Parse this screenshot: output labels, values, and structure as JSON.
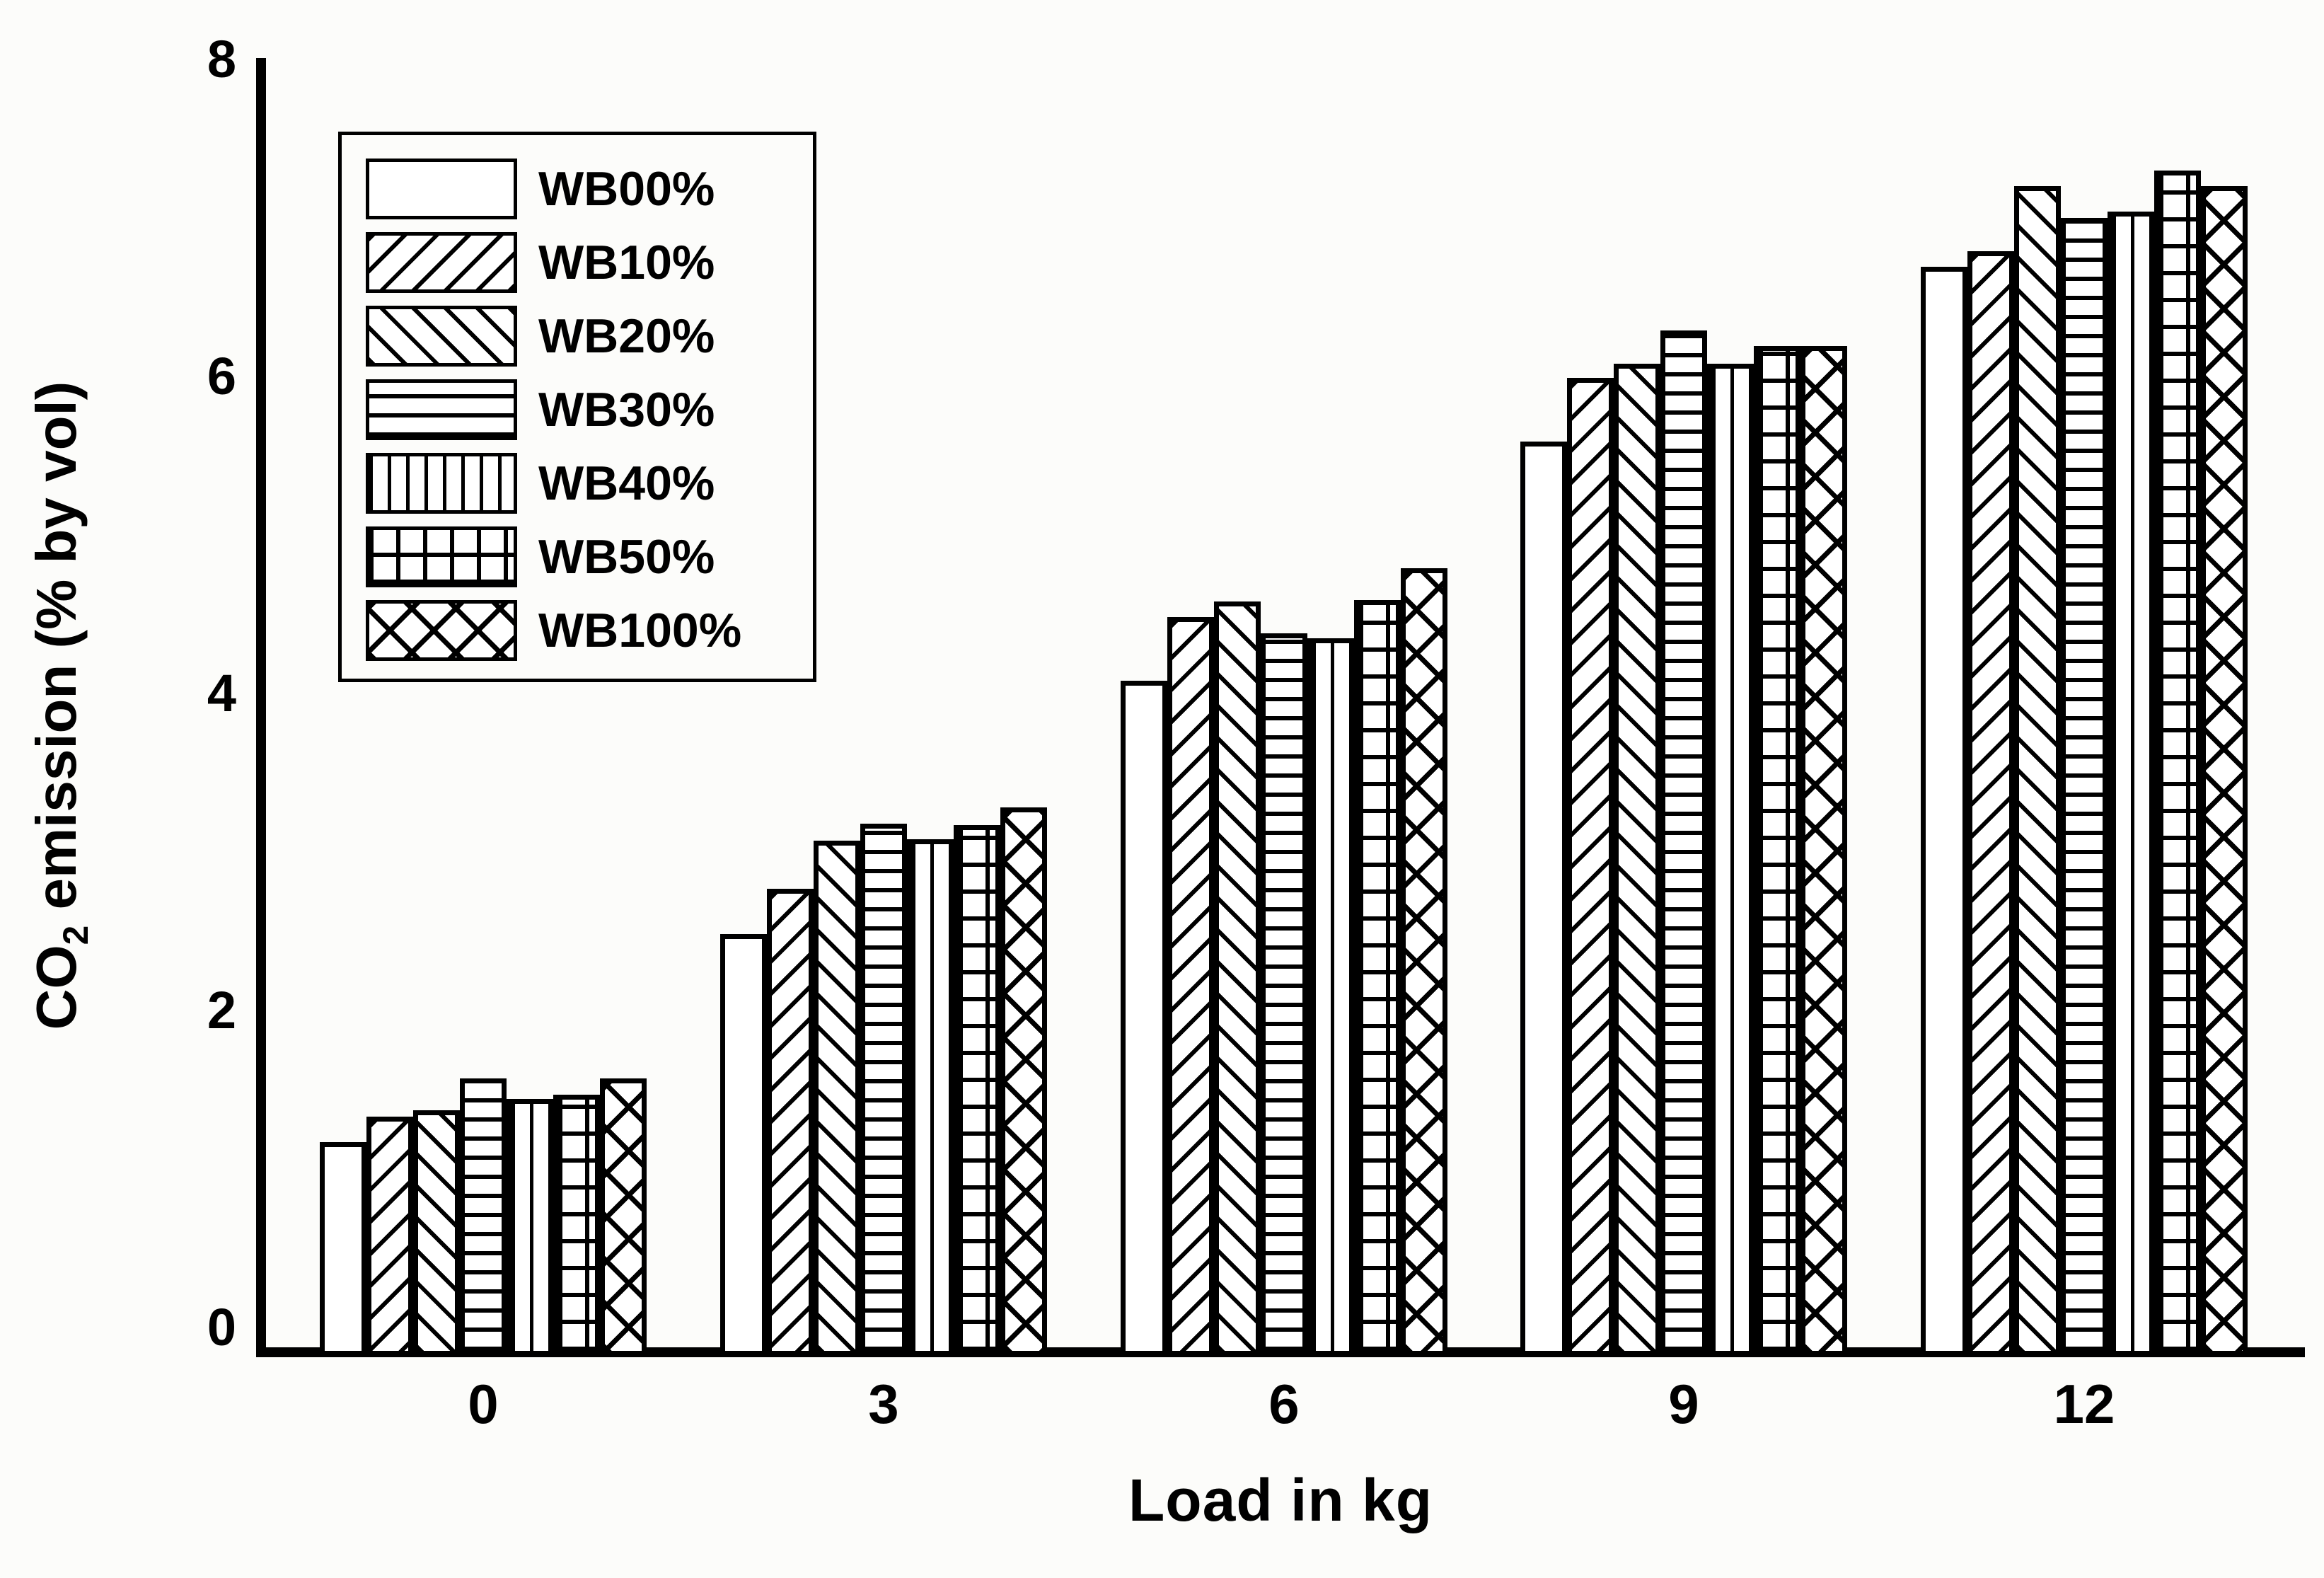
{
  "chart_data": {
    "type": "bar",
    "title": "",
    "xlabel": "Load in kg",
    "ylabel": "CO2 emission (% by vol)",
    "ylabel_parts": {
      "prefix": "CO",
      "subscript": "2",
      "suffix": " emission (% by vol)"
    },
    "categories": [
      "0",
      "3",
      "6",
      "9",
      "12"
    ],
    "y_ticks": [
      "0",
      "2",
      "4",
      "6",
      "8"
    ],
    "ylim": [
      0,
      8
    ],
    "grid": false,
    "legend_position": "upper-left",
    "series": [
      {
        "name": "WB00%",
        "pattern": "plain",
        "values": [
          1.17,
          2.48,
          4.08,
          5.59,
          6.69
        ]
      },
      {
        "name": "WB10%",
        "pattern": "diag-forward",
        "values": [
          1.33,
          2.77,
          4.48,
          5.99,
          6.79
        ]
      },
      {
        "name": "WB20%",
        "pattern": "diag-backward",
        "values": [
          1.37,
          3.07,
          4.58,
          6.08,
          7.2
        ]
      },
      {
        "name": "WB30%",
        "pattern": "horizontal",
        "values": [
          1.57,
          3.18,
          4.38,
          6.29,
          7.0
        ]
      },
      {
        "name": "WB40%",
        "pattern": "vertical",
        "values": [
          1.44,
          3.08,
          4.35,
          6.08,
          7.04
        ]
      },
      {
        "name": "WB50%",
        "pattern": "grid",
        "values": [
          1.47,
          3.17,
          4.59,
          6.19,
          7.3
        ]
      },
      {
        "name": "WB100%",
        "pattern": "crosshatch",
        "values": [
          1.57,
          3.28,
          4.79,
          6.19,
          7.2
        ]
      }
    ],
    "colors": {
      "line": "#000000",
      "fill": "#ffffff",
      "background": "#fcfcfa"
    }
  }
}
